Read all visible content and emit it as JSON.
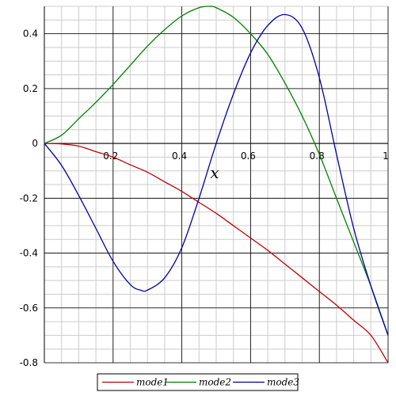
{
  "chart_data": {
    "type": "line",
    "xlabel": "x",
    "ylabel": "",
    "xlim": [
      0,
      1
    ],
    "ylim": [
      -0.8,
      0.5
    ],
    "x_ticks": [
      {
        "value": 0.2,
        "label": "0.2"
      },
      {
        "value": 0.4,
        "label": "0.4"
      },
      {
        "value": 0.6,
        "label": "0.6"
      },
      {
        "value": 0.8,
        "label": "0.8"
      },
      {
        "value": 1.0,
        "label": "1"
      }
    ],
    "y_ticks": [
      {
        "value": 0.4,
        "label": "0.4"
      },
      {
        "value": 0.2,
        "label": "0.2"
      },
      {
        "value": 0.0,
        "label": "0"
      },
      {
        "value": -0.2,
        "label": "-0.2"
      },
      {
        "value": -0.4,
        "label": "-0.4"
      },
      {
        "value": -0.6,
        "label": "-0.6"
      },
      {
        "value": -0.8,
        "label": "-0.8"
      }
    ],
    "grid": true,
    "legend_position": "bottom-center",
    "series": [
      {
        "name": "mode1",
        "color": "#c00000",
        "x": [
          0,
          0.05,
          0.1,
          0.15,
          0.2,
          0.25,
          0.3,
          0.35,
          0.4,
          0.45,
          0.5,
          0.55,
          0.6,
          0.65,
          0.7,
          0.75,
          0.8,
          0.85,
          0.9,
          0.95,
          1.0
        ],
        "y": [
          0,
          -0.002,
          -0.01,
          -0.03,
          -0.05,
          -0.078,
          -0.105,
          -0.14,
          -0.175,
          -0.215,
          -0.255,
          -0.3,
          -0.345,
          -0.39,
          -0.44,
          -0.49,
          -0.54,
          -0.59,
          -0.645,
          -0.7,
          -0.8
        ]
      },
      {
        "name": "mode2",
        "color": "#008000",
        "x": [
          0,
          0.05,
          0.1,
          0.15,
          0.2,
          0.25,
          0.3,
          0.35,
          0.4,
          0.45,
          0.48,
          0.5,
          0.55,
          0.6,
          0.65,
          0.7,
          0.75,
          0.8,
          0.85,
          0.9,
          0.95,
          1.0
        ],
        "y": [
          0,
          0.03,
          0.09,
          0.15,
          0.215,
          0.285,
          0.355,
          0.415,
          0.465,
          0.495,
          0.5,
          0.495,
          0.46,
          0.4,
          0.325,
          0.22,
          0.1,
          -0.04,
          -0.2,
          -0.36,
          -0.52,
          -0.7
        ]
      },
      {
        "name": "mode3",
        "color": "#0000a0",
        "x": [
          0,
          0.05,
          0.1,
          0.15,
          0.2,
          0.25,
          0.28,
          0.3,
          0.35,
          0.4,
          0.45,
          0.5,
          0.55,
          0.6,
          0.65,
          0.7,
          0.75,
          0.8,
          0.85,
          0.9,
          0.95,
          1.0
        ],
        "y": [
          0,
          -0.08,
          -0.19,
          -0.31,
          -0.43,
          -0.515,
          -0.535,
          -0.535,
          -0.49,
          -0.38,
          -0.2,
          0.0,
          0.18,
          0.33,
          0.43,
          0.47,
          0.42,
          0.24,
          -0.04,
          -0.31,
          -0.52,
          -0.7
        ]
      }
    ]
  }
}
